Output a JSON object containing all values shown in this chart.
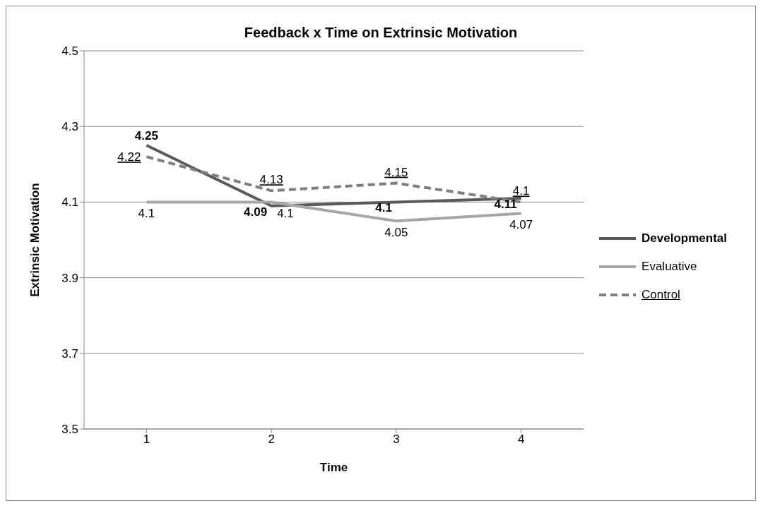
{
  "chart_data": {
    "type": "line",
    "title": "Feedback x Time on Extrinsic Motivation",
    "xlabel": "Time",
    "ylabel": "Extrinsic Motivation",
    "categories": [
      "1",
      "2",
      "3",
      "4"
    ],
    "series": [
      {
        "name": "Developmental",
        "color": "#595959",
        "values": [
          4.25,
          4.09,
          4.1,
          4.11
        ],
        "line_style": "solid"
      },
      {
        "name": "Evaluative",
        "color": "#a6a6a6",
        "values": [
          4.1,
          4.1,
          4.05,
          4.07
        ],
        "line_style": "solid"
      },
      {
        "name": "Control",
        "color": "#7f7f7f",
        "values": [
          4.22,
          4.13,
          4.15,
          4.1
        ],
        "line_style": "dashed"
      }
    ],
    "ylim": [
      3.5,
      4.5
    ],
    "yticks": [
      3.5,
      3.7,
      3.9,
      4.1,
      4.3,
      4.5
    ],
    "grid": "y",
    "legend": "right",
    "marker": "none",
    "data_labels": true
  }
}
